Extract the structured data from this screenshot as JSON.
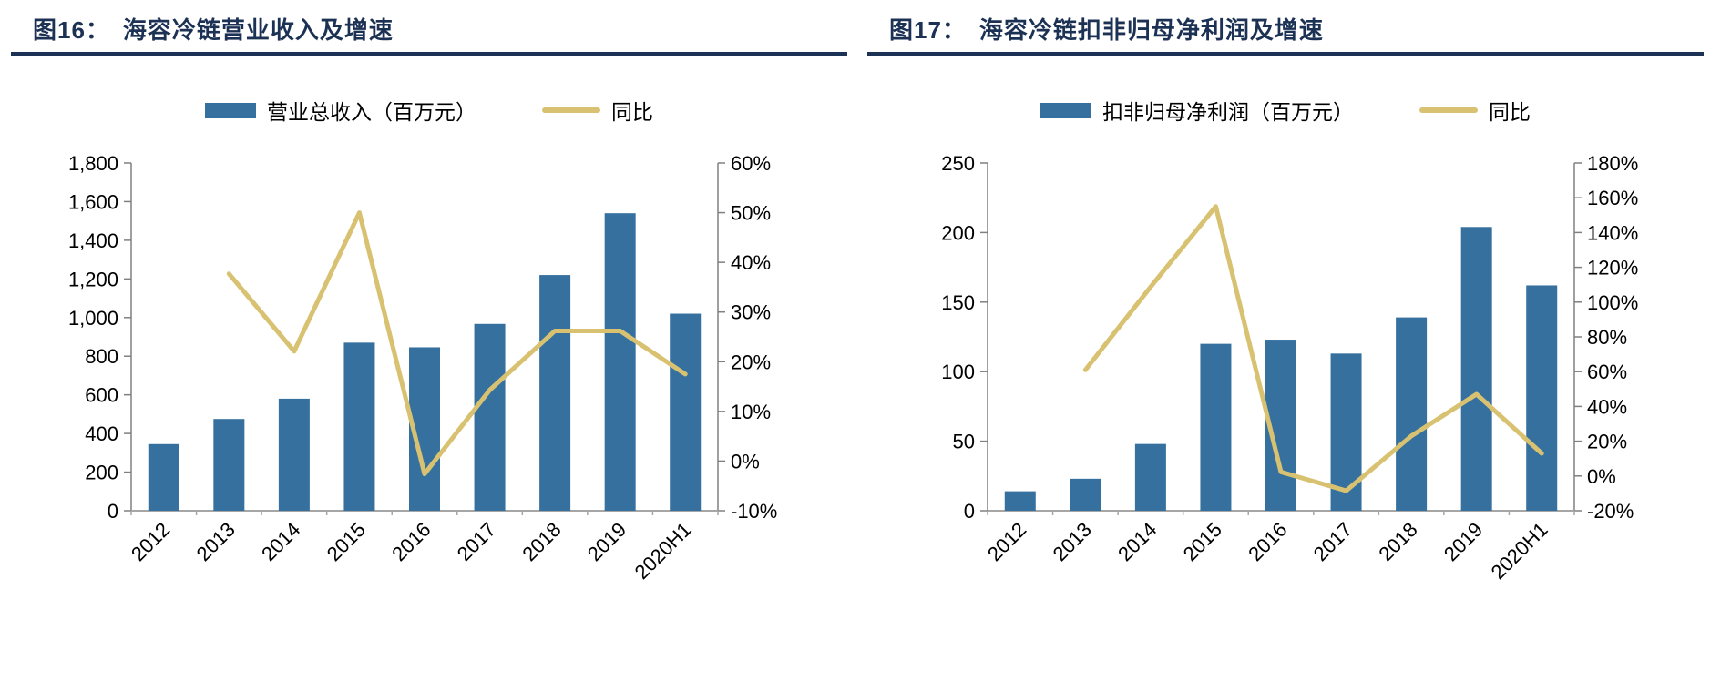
{
  "colors": {
    "bar": "#35709E",
    "line": "#D8C271",
    "title": "#1C3254",
    "rule": "#1C3254",
    "axis_text": "#000000",
    "axis_line": "#808080",
    "baseline": "#A6A6A6"
  },
  "chart_data": [
    {
      "type": "bar+line",
      "title_prefix": "图16：",
      "title": "海容冷链营业收入及增速",
      "legend": [
        {
          "label": "营业总收入（百万元）",
          "marker": "bar"
        },
        {
          "label": "同比",
          "marker": "line"
        }
      ],
      "categories": [
        "2012",
        "2013",
        "2014",
        "2015",
        "2016",
        "2017",
        "2018",
        "2019",
        "2020H1"
      ],
      "series": [
        {
          "name": "营业总收入（百万元）",
          "type": "bar",
          "axis": "left",
          "values": [
            345,
            475,
            580,
            870,
            846,
            967,
            1220,
            1540,
            1020
          ]
        },
        {
          "name": "同比",
          "type": "line",
          "axis": "right",
          "values": [
            null,
            37.7,
            22.1,
            50.0,
            -2.6,
            14.3,
            26.2,
            26.2,
            17.5
          ]
        }
      ],
      "left_axis": {
        "min": 0,
        "max": 1800,
        "step": 200,
        "comma": true,
        "suffix": ""
      },
      "right_axis": {
        "min": -10,
        "max": 60,
        "step": 10,
        "comma": false,
        "suffix": "%"
      },
      "grid": false,
      "legend_position": "top",
      "xlabel_rotation": -45
    },
    {
      "type": "bar+line",
      "title_prefix": "图17：",
      "title": "海容冷链扣非归母净利润及增速",
      "legend": [
        {
          "label": "扣非归母净利润（百万元）",
          "marker": "bar"
        },
        {
          "label": "同比",
          "marker": "line"
        }
      ],
      "categories": [
        "2012",
        "2013",
        "2014",
        "2015",
        "2016",
        "2017",
        "2018",
        "2019",
        "2020H1"
      ],
      "series": [
        {
          "name": "扣非归母净利润（百万元）",
          "type": "bar",
          "axis": "left",
          "values": [
            14,
            23,
            48,
            120,
            123,
            113,
            139,
            204,
            162
          ]
        },
        {
          "name": "同比",
          "type": "line",
          "axis": "right",
          "values": [
            null,
            61,
            108.7,
            155,
            2.3,
            -8.5,
            23,
            47,
            13
          ]
        }
      ],
      "left_axis": {
        "min": 0,
        "max": 250,
        "step": 50,
        "comma": false,
        "suffix": ""
      },
      "right_axis": {
        "min": -20,
        "max": 180,
        "step": 20,
        "comma": false,
        "suffix": "%"
      },
      "grid": false,
      "legend_position": "top",
      "xlabel_rotation": -45
    }
  ]
}
